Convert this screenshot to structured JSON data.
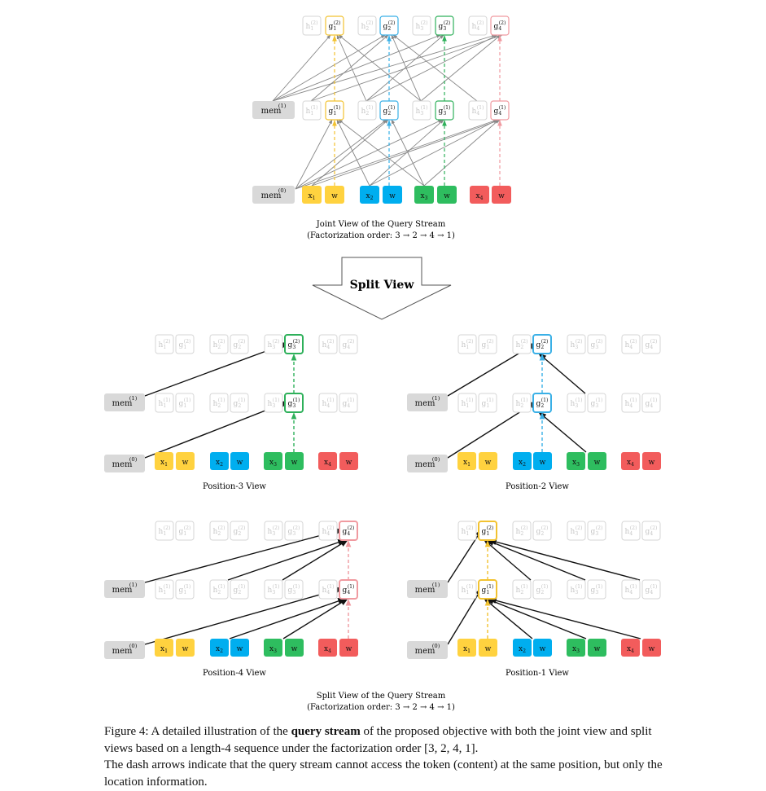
{
  "labels": {
    "h": "h",
    "g": "g",
    "x": "x",
    "w": "w",
    "mem": "mem",
    "sub1": "1",
    "sub2": "2",
    "sub3": "3",
    "sub4": "4",
    "sup0": "(0)",
    "sup1": "(1)",
    "sup2": "(2)"
  },
  "joint": {
    "title": "Joint View of the Query Stream",
    "order": "(Factorization order: 3 → 2 → 4 → 1)"
  },
  "split_arrow": {
    "label": "Split View"
  },
  "views": [
    {
      "key": "pos3",
      "title": "Position-3 View"
    },
    {
      "key": "pos2",
      "title": "Position-2 View"
    },
    {
      "key": "pos4",
      "title": "Position-4 View"
    },
    {
      "key": "pos1",
      "title": "Position-1 View"
    }
  ],
  "split": {
    "title": "Split View of the Query Stream",
    "order": "(Factorization order: 3 → 2 → 4 → 1)"
  },
  "caption": {
    "prefix": "Figure 4: A detailed illustration of the ",
    "bold": "query stream",
    "suffix": " of the proposed objective with both the joint view and split views based on a length-4 sequence under the factorization order [3, 2, 4, 1].",
    "line2": "The dash arrows indicate that the query stream cannot access the token (content) at the same position, but only the location information."
  },
  "colors": {
    "pos1": "#ffd23f",
    "pos2": "#00aeef",
    "pos3": "#2ebd5f",
    "pos4": "#f25c5c",
    "pos1_border": "#f2c230",
    "pos2_border": "#3ab0e6",
    "pos3_border": "#2eb05a",
    "pos4_border": "#f09aa0",
    "faint": "#d6d6d6",
    "mem_fill": "#d9d9d9",
    "edge_joint": "#888888",
    "edge_split": "#111111"
  }
}
